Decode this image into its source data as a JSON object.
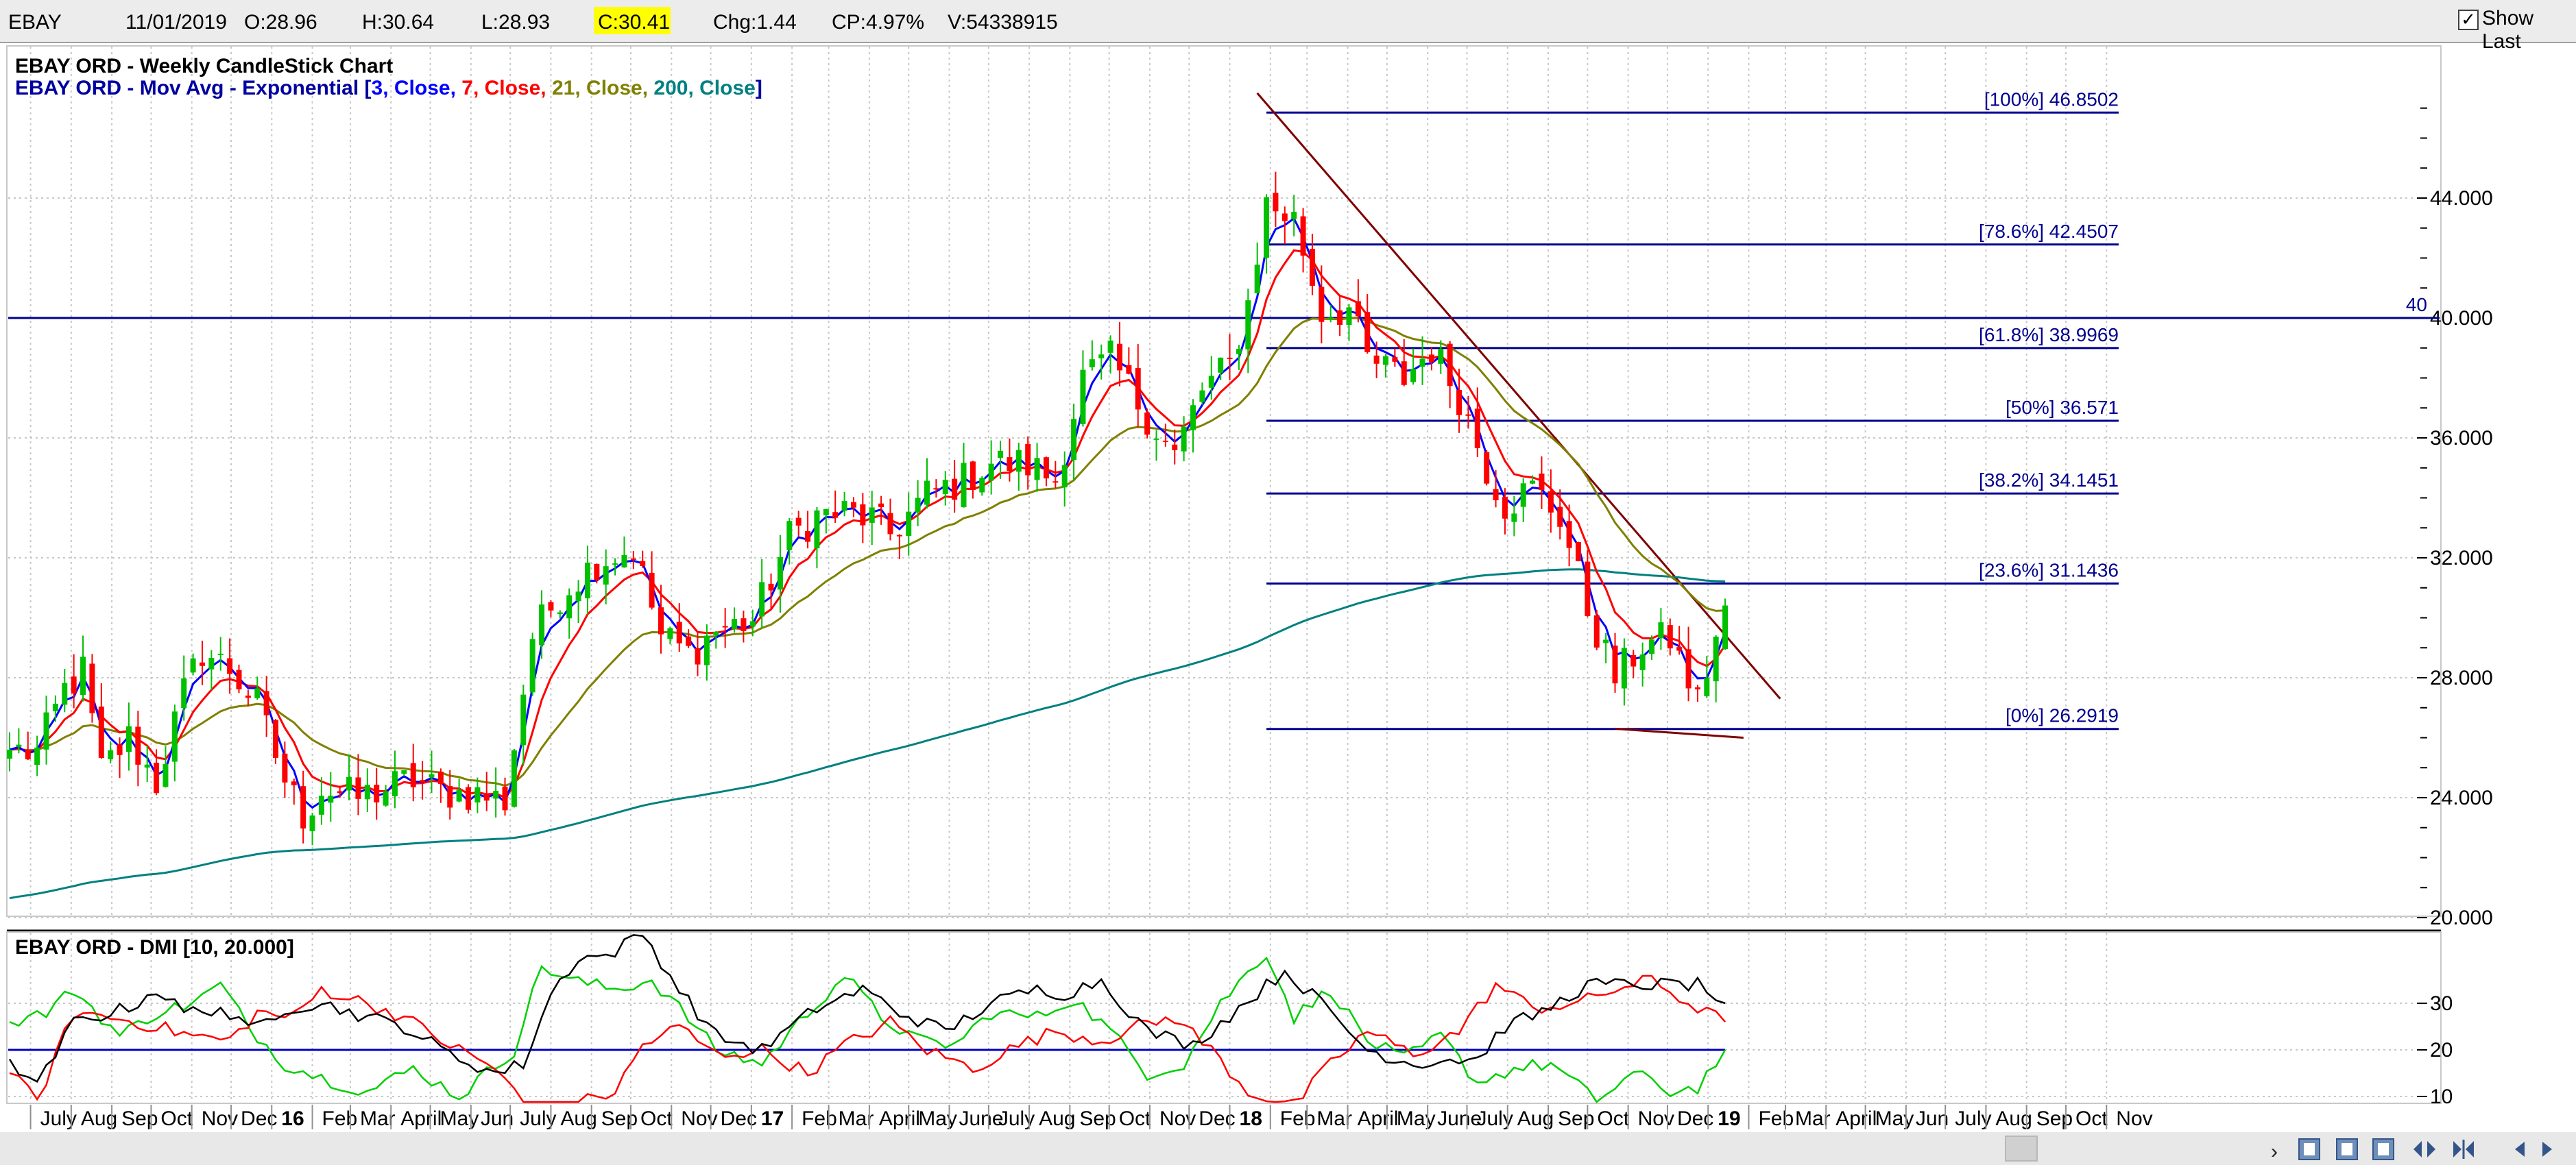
{
  "header": {
    "symbol": "EBAY",
    "date": "11/01/2019",
    "open": "O:28.96",
    "high": "H:30.64",
    "low": "L:28.93",
    "close": "C:30.41",
    "change": "Chg:1.44",
    "change_pct": "CP:4.97%",
    "volume": "V:54338915",
    "show_last_label": "Show Last",
    "show_last_checked": true,
    "close_highlight_color": "#ffff00"
  },
  "price_panel": {
    "title": "EBAY ORD - Weekly CandleStick Chart",
    "legend": [
      {
        "text": "EBAY ORD - Mov Avg - Exponential [",
        "color": "#0000a0"
      },
      {
        "text": "3",
        "color": "#0000ff"
      },
      {
        "text": ", Close, ",
        "color": "#0000ff"
      },
      {
        "text": "7",
        "color": "#ff0000"
      },
      {
        "text": ", Close, ",
        "color": "#ff0000"
      },
      {
        "text": "21",
        "color": "#808000"
      },
      {
        "text": ", Close, ",
        "color": "#808000"
      },
      {
        "text": "200",
        "color": "#008080"
      },
      {
        "text": ", Close",
        "color": "#008080"
      },
      {
        "text": "]",
        "color": "#0000a0"
      }
    ],
    "horizontal_line_label": "40",
    "y_ticks": [
      "44.000",
      "40.000",
      "36.000",
      "32.000",
      "28.000",
      "24.000",
      "20.000"
    ]
  },
  "dmi_panel": {
    "title": "EBAY ORD - DMI [10, 20.000]",
    "y_ticks": [
      "30",
      "20",
      "10"
    ]
  },
  "x_axis_labels": [
    "July",
    "Aug",
    "Sep",
    "Oct",
    "Nov",
    "Dec",
    "16",
    "Feb",
    "Mar",
    "April",
    "May",
    "Jun",
    "July",
    "Aug",
    "Sep",
    "Oct",
    "Nov",
    "Dec",
    "17",
    "Feb",
    "Mar",
    "April",
    "May",
    "June",
    "July",
    "Aug",
    "Sep",
    "Oct",
    "Nov",
    "Dec",
    "18",
    "Feb",
    "Mar",
    "April",
    "May",
    "June",
    "July",
    "Aug",
    "Sep",
    "Oct",
    "Nov",
    "Dec",
    "19",
    "Feb",
    "Mar",
    "April",
    "May",
    "Jun",
    "July",
    "Aug",
    "Sep",
    "Oct",
    "Nov"
  ],
  "chart_data": {
    "type": "candlestick",
    "title": "EBAY ORD - Weekly CandleStick Chart",
    "ylim": [
      20,
      48
    ],
    "y_scale": "linear",
    "grid": true,
    "start_week": "2015-06-15",
    "end_week": "2019-01-11",
    "anchors": [
      [
        "2015-06-15",
        25.6
      ],
      [
        "2015-07-06",
        25.5
      ],
      [
        "2015-07-27",
        27.6
      ],
      [
        "2015-08-10",
        28.2
      ],
      [
        "2015-08-24",
        24.9
      ],
      [
        "2015-09-14",
        26.0
      ],
      [
        "2015-10-05",
        24.5
      ],
      [
        "2015-10-26",
        27.5
      ],
      [
        "2015-11-09",
        28.9
      ],
      [
        "2015-11-30",
        28.3
      ],
      [
        "2015-12-21",
        27.1
      ],
      [
        "2016-01-11",
        24.6
      ],
      [
        "2016-01-25",
        23.4
      ],
      [
        "2016-02-08",
        24.3
      ],
      [
        "2016-03-07",
        24.0
      ],
      [
        "2016-03-28",
        24.3
      ],
      [
        "2016-04-18",
        24.6
      ],
      [
        "2016-05-09",
        24.2
      ],
      [
        "2016-06-06",
        24.1
      ],
      [
        "2016-06-27",
        23.9
      ],
      [
        "2016-07-18",
        29.4
      ],
      [
        "2016-08-08",
        30.8
      ],
      [
        "2016-09-05",
        31.9
      ],
      [
        "2016-10-03",
        32.3
      ],
      [
        "2016-10-24",
        29.4
      ],
      [
        "2016-11-14",
        28.8
      ],
      [
        "2016-12-05",
        29.6
      ],
      [
        "2017-01-02",
        29.9
      ],
      [
        "2017-01-30",
        32.7
      ],
      [
        "2017-02-20",
        33.4
      ],
      [
        "2017-03-13",
        33.5
      ],
      [
        "2017-04-03",
        33.3
      ],
      [
        "2017-04-17",
        32.8
      ],
      [
        "2017-05-15",
        34.1
      ],
      [
        "2017-06-12",
        34.6
      ],
      [
        "2017-07-03",
        35.2
      ],
      [
        "2017-07-31",
        35.1
      ],
      [
        "2017-08-21",
        34.6
      ],
      [
        "2017-09-11",
        38.0
      ],
      [
        "2017-10-02",
        38.6
      ],
      [
        "2017-10-23",
        37.2
      ],
      [
        "2017-11-20",
        35.4
      ],
      [
        "2017-12-11",
        37.6
      ],
      [
        "2018-01-01",
        38.4
      ],
      [
        "2018-01-15",
        40.5
      ],
      [
        "2018-01-29",
        43.8
      ],
      [
        "2018-02-19",
        43.3
      ],
      [
        "2018-03-12",
        40.2
      ],
      [
        "2018-04-02",
        40.3
      ],
      [
        "2018-04-16",
        38.6
      ],
      [
        "2018-05-14",
        38.0
      ],
      [
        "2018-06-04",
        39.0
      ],
      [
        "2018-06-25",
        37.4
      ],
      [
        "2018-07-16",
        35.0
      ],
      [
        "2018-07-30",
        33.8
      ],
      [
        "2018-08-20",
        34.3
      ],
      [
        "2018-09-10",
        33.4
      ],
      [
        "2018-10-01",
        30.3
      ],
      [
        "2018-10-22",
        28.0
      ],
      [
        "2018-11-12",
        29.1
      ],
      [
        "2018-12-03",
        29.3
      ],
      [
        "2018-12-24",
        27.2
      ],
      [
        "2019-01-11",
        30.41
      ]
    ],
    "ema_periods": [
      3,
      7,
      21,
      200
    ],
    "ema_colors": [
      "#0000ff",
      "#ff0000",
      "#808000",
      "#008080"
    ],
    "ema200_start_value": 20.6,
    "horizontal_line": 40,
    "fibonacci": [
      {
        "label": "[100%] 46.8502",
        "value": 46.8502
      },
      {
        "label": "[78.6%] 42.4507",
        "value": 42.4507
      },
      {
        "label": "[61.8%] 38.9969",
        "value": 38.9969
      },
      {
        "label": "[50%] 36.571",
        "value": 36.571
      },
      {
        "label": "[38.2%] 34.1451",
        "value": 34.1451
      },
      {
        "label": "[23.6%] 31.1436",
        "value": 31.1436
      },
      {
        "label": "[0%] 26.2919",
        "value": 26.2919
      }
    ],
    "fib_start": "2018-01-29",
    "fib_end": "2018-12-24",
    "trendline": {
      "from": [
        "2018-01-22",
        47.5
      ],
      "to": [
        "2019-02-22",
        27.3
      ]
    },
    "support_line": {
      "from": [
        "2018-10-22",
        26.3
      ],
      "to": [
        "2019-01-25",
        26.0
      ]
    },
    "dmi": {
      "period": 10,
      "threshold": 20,
      "ylim": [
        5,
        40
      ],
      "adx_color": "#000000",
      "plus_di_color": "#00d000",
      "minus_di_color": "#ff0000",
      "threshold_color": "#0000c0",
      "adx_anchors": [
        [
          "2015-06-15",
          18
        ],
        [
          "2015-07-06",
          12
        ],
        [
          "2015-08-03",
          26
        ],
        [
          "2015-09-14",
          29
        ],
        [
          "2015-10-05",
          33
        ],
        [
          "2015-10-26",
          28
        ],
        [
          "2015-11-23",
          29
        ],
        [
          "2015-12-14",
          24
        ],
        [
          "2016-01-11",
          29
        ],
        [
          "2016-02-08",
          30
        ],
        [
          "2016-03-14",
          27
        ],
        [
          "2016-04-11",
          25
        ],
        [
          "2016-05-16",
          19
        ],
        [
          "2016-06-20",
          15
        ],
        [
          "2016-07-11",
          17
        ],
        [
          "2016-08-01",
          32
        ],
        [
          "2016-08-22",
          40
        ],
        [
          "2016-09-12",
          40
        ],
        [
          "2016-10-10",
          45
        ],
        [
          "2016-11-07",
          33
        ],
        [
          "2016-12-05",
          23
        ],
        [
          "2017-01-09",
          20
        ],
        [
          "2017-02-20",
          29
        ],
        [
          "2017-03-27",
          33
        ],
        [
          "2017-04-24",
          28
        ],
        [
          "2017-05-29",
          24
        ],
        [
          "2017-07-03",
          30
        ],
        [
          "2017-08-07",
          33
        ],
        [
          "2017-08-28",
          32
        ],
        [
          "2017-09-25",
          35
        ],
        [
          "2017-10-30",
          24
        ],
        [
          "2017-12-04",
          21
        ],
        [
          "2018-01-08",
          29
        ],
        [
          "2018-02-12",
          37
        ],
        [
          "2018-03-12",
          30
        ],
        [
          "2018-04-16",
          20
        ],
        [
          "2018-05-21",
          17
        ],
        [
          "2018-06-18",
          18
        ],
        [
          "2018-07-09",
          18
        ],
        [
          "2018-07-30",
          25
        ],
        [
          "2018-08-27",
          28
        ],
        [
          "2018-10-01",
          34
        ],
        [
          "2018-10-29",
          34
        ],
        [
          "2018-12-03",
          34
        ],
        [
          "2018-12-24",
          34
        ],
        [
          "2019-01-11",
          30
        ]
      ],
      "plus_di_anchors": [
        [
          "2015-06-15",
          26
        ],
        [
          "2015-07-13",
          28
        ],
        [
          "2015-08-03",
          33
        ],
        [
          "2015-09-07",
          23
        ],
        [
          "2015-10-05",
          28
        ],
        [
          "2015-11-02",
          30
        ],
        [
          "2015-11-23",
          34
        ],
        [
          "2015-12-14",
          25
        ],
        [
          "2016-01-11",
          17
        ],
        [
          "2016-02-08",
          14
        ],
        [
          "2016-03-14",
          11
        ],
        [
          "2016-04-18",
          16
        ],
        [
          "2016-05-23",
          10
        ],
        [
          "2016-07-04",
          20
        ],
        [
          "2016-07-25",
          38
        ],
        [
          "2016-08-15",
          35
        ],
        [
          "2016-09-19",
          33
        ],
        [
          "2016-10-17",
          35
        ],
        [
          "2016-11-07",
          29
        ],
        [
          "2016-12-05",
          20
        ],
        [
          "2017-01-09",
          17
        ],
        [
          "2017-02-13",
          28
        ],
        [
          "2017-03-13",
          36
        ],
        [
          "2017-04-10",
          27
        ],
        [
          "2017-05-08",
          22
        ],
        [
          "2017-06-05",
          21
        ],
        [
          "2017-07-03",
          28
        ],
        [
          "2017-08-07",
          27
        ],
        [
          "2017-09-04",
          31
        ],
        [
          "2017-10-02",
          24
        ],
        [
          "2017-10-30",
          15
        ],
        [
          "2017-11-27",
          17
        ],
        [
          "2017-12-25",
          30
        ],
        [
          "2018-01-29",
          41
        ],
        [
          "2018-02-19",
          27
        ],
        [
          "2018-03-19",
          33
        ],
        [
          "2018-04-16",
          22
        ],
        [
          "2018-05-14",
          18
        ],
        [
          "2018-06-11",
          23
        ],
        [
          "2018-07-09",
          13
        ],
        [
          "2018-08-06",
          16
        ],
        [
          "2018-09-03",
          17
        ],
        [
          "2018-10-08",
          9
        ],
        [
          "2018-11-05",
          15
        ],
        [
          "2018-12-03",
          11
        ],
        [
          "2018-12-24",
          12
        ],
        [
          "2019-01-11",
          20
        ]
      ],
      "minus_di_anchors": [
        [
          "2015-06-15",
          15
        ],
        [
          "2015-07-06",
          9
        ],
        [
          "2015-08-03",
          28
        ],
        [
          "2015-08-31",
          27
        ],
        [
          "2015-10-05",
          25
        ],
        [
          "2015-11-02",
          23
        ],
        [
          "2015-11-30",
          22
        ],
        [
          "2015-12-21",
          28
        ],
        [
          "2016-01-18",
          27
        ],
        [
          "2016-02-08",
          33
        ],
        [
          "2016-03-14",
          30
        ],
        [
          "2016-04-11",
          27
        ],
        [
          "2016-05-16",
          21
        ],
        [
          "2016-06-20",
          16
        ],
        [
          "2016-07-18",
          6
        ],
        [
          "2016-08-15",
          8
        ],
        [
          "2016-09-19",
          11
        ],
        [
          "2016-10-10",
          21
        ],
        [
          "2016-11-07",
          25
        ],
        [
          "2016-12-05",
          19
        ],
        [
          "2017-01-09",
          20
        ],
        [
          "2017-02-13",
          15
        ],
        [
          "2017-03-13",
          21
        ],
        [
          "2017-04-17",
          26
        ],
        [
          "2017-05-15",
          20
        ],
        [
          "2017-06-19",
          16
        ],
        [
          "2017-07-24",
          21
        ],
        [
          "2017-08-21",
          24
        ],
        [
          "2017-09-25",
          22
        ],
        [
          "2017-10-23",
          25
        ],
        [
          "2017-11-20",
          27
        ],
        [
          "2017-12-18",
          20
        ],
        [
          "2018-01-15",
          11
        ],
        [
          "2018-02-19",
          8
        ],
        [
          "2018-03-19",
          17
        ],
        [
          "2018-04-16",
          24
        ],
        [
          "2018-05-21",
          19
        ],
        [
          "2018-06-25",
          24
        ],
        [
          "2018-07-23",
          34
        ],
        [
          "2018-08-20",
          29
        ],
        [
          "2018-09-24",
          30
        ],
        [
          "2018-10-22",
          33
        ],
        [
          "2018-11-19",
          35
        ],
        [
          "2018-12-17",
          30
        ],
        [
          "2019-01-11",
          26
        ]
      ]
    }
  }
}
